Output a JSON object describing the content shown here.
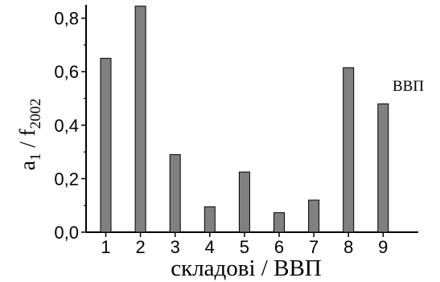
{
  "chart_data": {
    "type": "bar",
    "categories": [
      "1",
      "2",
      "3",
      "4",
      "5",
      "6",
      "7",
      "8",
      "9"
    ],
    "values": [
      0.65,
      0.845,
      0.29,
      0.095,
      0.225,
      0.073,
      0.12,
      0.615,
      0.48
    ],
    "title": "",
    "xlabel": "складові / ВВП",
    "ylabel_main": "a",
    "ylabel_main_sub": "1",
    "ylabel_sep": " / f",
    "ylabel_denom_sub": "2002",
    "ylim": [
      0,
      0.85
    ],
    "y_ticks": [
      "0,0",
      "0,2",
      "0,4",
      "0,6",
      "0,8"
    ],
    "y_tick_values": [
      0,
      0.2,
      0.4,
      0.6,
      0.8
    ],
    "annotation": "ВВП",
    "grid": false,
    "legend": "none",
    "bar_color": "#808080",
    "bar_edge_color": "#000000"
  }
}
